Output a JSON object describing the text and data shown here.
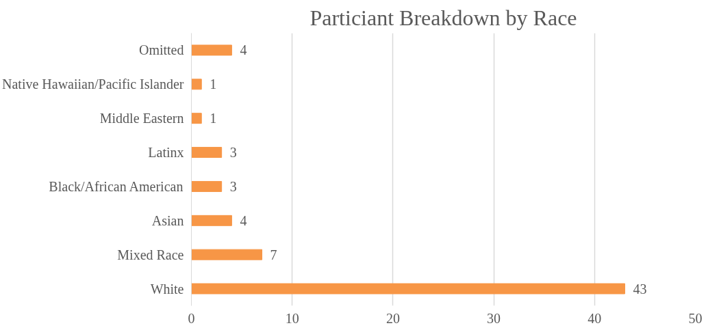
{
  "chart_data": {
    "type": "bar",
    "orientation": "horizontal",
    "title": "Particiant Breakdown by Race",
    "categories": [
      "Omitted",
      "Native Hawaiian/Pacific Islander",
      "Middle Eastern",
      "Latinx",
      "Black/African American",
      "Asian",
      "Mixed Race",
      "White"
    ],
    "values": [
      4,
      1,
      1,
      3,
      3,
      4,
      7,
      43
    ],
    "color": "#f79646",
    "xlim": [
      0,
      50
    ],
    "xticks": [
      0,
      10,
      20,
      30,
      40,
      50
    ],
    "grid": "x",
    "data_labels": true
  }
}
